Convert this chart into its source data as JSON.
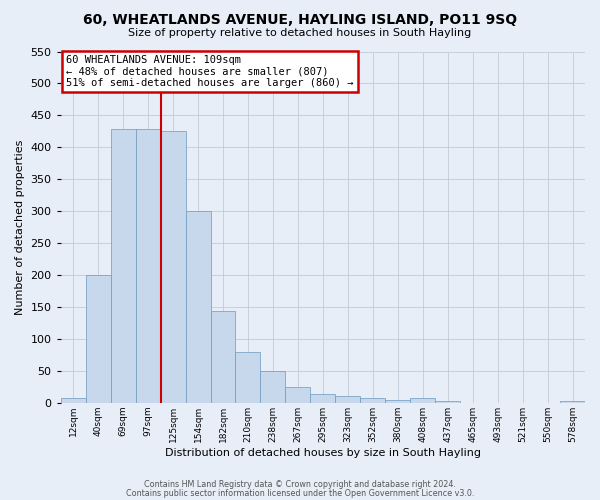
{
  "title": "60, WHEATLANDS AVENUE, HAYLING ISLAND, PO11 9SQ",
  "subtitle": "Size of property relative to detached houses in South Hayling",
  "xlabel": "Distribution of detached houses by size in South Hayling",
  "ylabel": "Number of detached properties",
  "bar_color": "#c8d8ec",
  "bar_edge_color": "#6a9abf",
  "bin_labels": [
    "12sqm",
    "40sqm",
    "69sqm",
    "97sqm",
    "125sqm",
    "154sqm",
    "182sqm",
    "210sqm",
    "238sqm",
    "267sqm",
    "295sqm",
    "323sqm",
    "352sqm",
    "380sqm",
    "408sqm",
    "437sqm",
    "465sqm",
    "493sqm",
    "521sqm",
    "550sqm",
    "578sqm"
  ],
  "bar_values": [
    8,
    200,
    428,
    428,
    425,
    300,
    143,
    80,
    50,
    25,
    13,
    10,
    8,
    5,
    8,
    3,
    0,
    0,
    0,
    0,
    3
  ],
  "ylim": [
    0,
    550
  ],
  "yticks": [
    0,
    50,
    100,
    150,
    200,
    250,
    300,
    350,
    400,
    450,
    500,
    550
  ],
  "vline_x": 4.0,
  "vline_color": "#cc0000",
  "annotation_title": "60 WHEATLANDS AVENUE: 109sqm",
  "annotation_line1": "← 48% of detached houses are smaller (807)",
  "annotation_line2": "51% of semi-detached houses are larger (860) →",
  "annotation_box_color": "#ffffff",
  "annotation_box_edge": "#cc0000",
  "footer1": "Contains HM Land Registry data © Crown copyright and database right 2024.",
  "footer2": "Contains public sector information licensed under the Open Government Licence v3.0.",
  "background_color": "#e8eef8",
  "grid_color": "#c0ccd8"
}
